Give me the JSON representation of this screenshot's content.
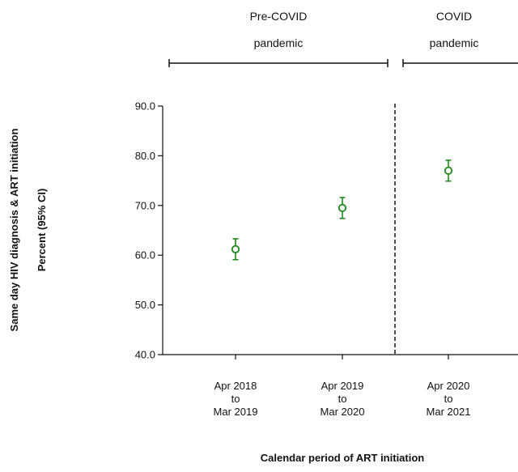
{
  "chart_data": {
    "type": "scatter",
    "periods": [
      {
        "line1": "Pre-COVID",
        "line2": "pandemic"
      },
      {
        "line1": "COVID",
        "line2": "pandemic"
      }
    ],
    "categories": [
      [
        "Apr 2018",
        "to",
        "Mar 2019"
      ],
      [
        "Apr 2019",
        "to",
        "Mar 2020"
      ],
      [
        "Apr 2020",
        "to",
        "Mar 2021"
      ]
    ],
    "series": [
      {
        "values": [
          61.2,
          69.5,
          77.0
        ],
        "ci_lower": [
          59.1,
          67.4,
          74.9
        ],
        "ci_upper": [
          63.3,
          71.6,
          79.1
        ],
        "color": "#1e8a1e"
      }
    ],
    "ylim": [
      40.0,
      90.0
    ],
    "yticks": [
      "90.0",
      "80.0",
      "70.0",
      "60.0",
      "50.0",
      "40.0"
    ],
    "ylabel": [
      "Same day HIV diagnosis & ART initiation",
      "Percent (95% CI)"
    ],
    "xlabel": "Calendar period of ART initiation",
    "divider_between_categories": [
      1,
      2
    ],
    "grid": false
  }
}
